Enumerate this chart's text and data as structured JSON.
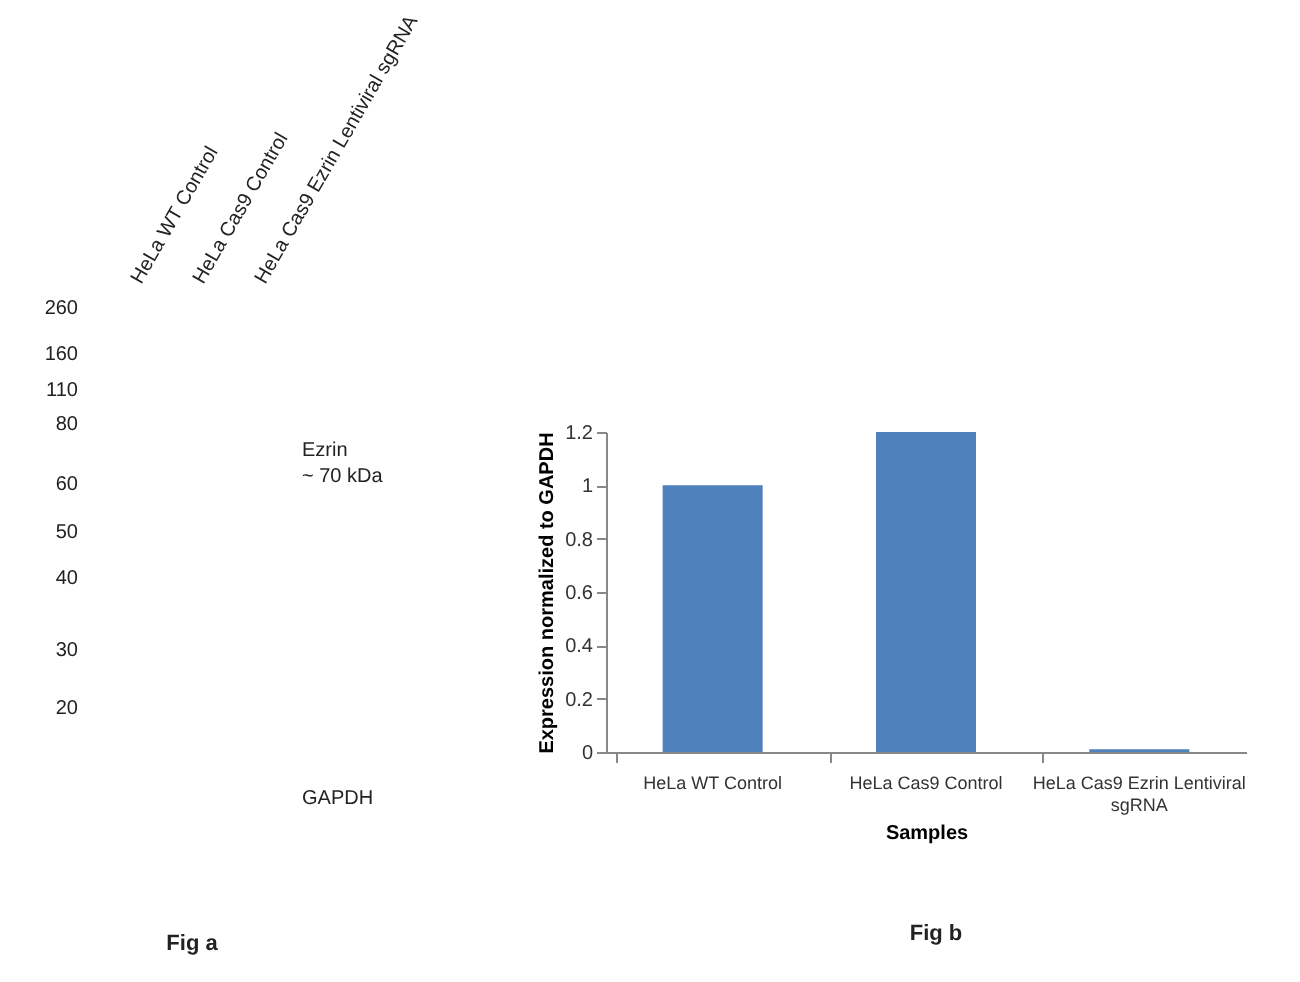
{
  "chart_data": [
    {
      "type": "other",
      "annotations": [
        "HeLa WT Control",
        "HeLa Cas9 Control",
        "HeLa Cas9 Ezrin Lentiviral sgRNA",
        "260",
        "160",
        "110",
        "80",
        "60",
        "50",
        "40",
        "30",
        "20",
        "Ezrin",
        "~ 70 kDa",
        "GAPDH",
        "Fig a"
      ]
    },
    {
      "type": "bar",
      "categories": [
        "HeLa WT Control",
        "HeLa Cas9 Control",
        "HeLa Cas9 Ezrin Lentiviral sgRNA"
      ],
      "values": [
        1.0,
        1.2,
        0.01
      ],
      "color": "#4f81bd",
      "xlabel": "Samples",
      "ylabel": "Expression  normalized to GAPDH",
      "ylim": [
        0,
        1.2
      ],
      "yticks": [
        0,
        0.2,
        0.4,
        0.6,
        0.8,
        1,
        1.2
      ],
      "grid": false,
      "annotations": [
        "Fig b"
      ]
    }
  ]
}
